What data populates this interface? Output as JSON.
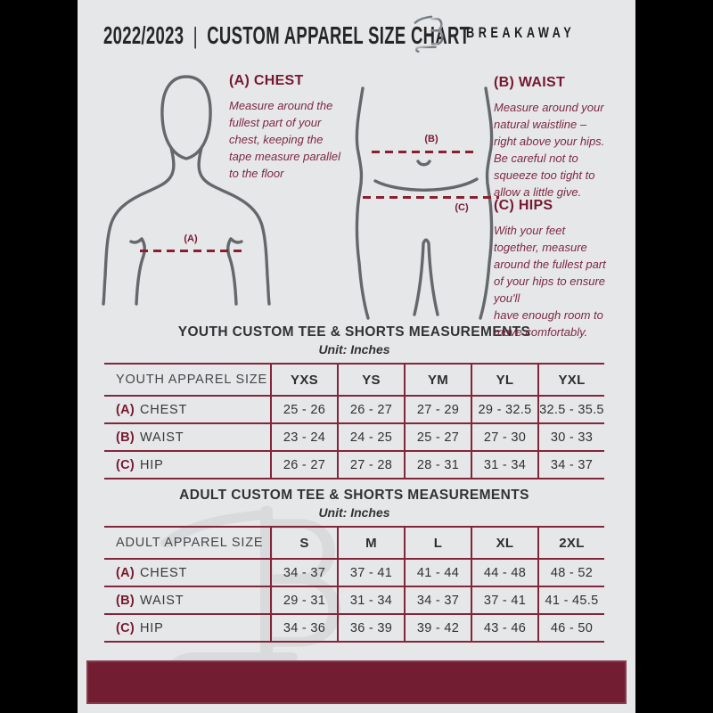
{
  "header": {
    "year": "2022/2023",
    "divider": "|",
    "title": "CUSTOM APPAREL SIZE CHART",
    "brand": "BREAKAWAY"
  },
  "guide": {
    "chest": {
      "heading": "(A) CHEST",
      "marker": "(A)",
      "body": "Measure around the\nfullest part of your\nchest, keeping the\ntape measure parallel\nto the floor"
    },
    "waist": {
      "heading": "(B) WAIST",
      "marker": "(B)",
      "body": "Measure around your\nnatural waistline –\nright above your hips.\nBe careful not to\nsqueeze too tight to\nallow a little give."
    },
    "hips": {
      "heading": "(C) HIPS",
      "marker": "(C)",
      "body": "With your feet\ntogether, measure\naround the fullest part\nof your hips to ensure\nyou'll\nhave enough room to\nmove comfortably."
    }
  },
  "youth_table": {
    "title": "YOUTH CUSTOM TEE & SHORTS MEASUREMENTS",
    "unit": "Unit: Inches",
    "header": [
      "YOUTH APPAREL SIZE",
      "YXS",
      "YS",
      "YM",
      "YL",
      "YXL"
    ],
    "rows": [
      {
        "prefix": "(A)",
        "label": "CHEST",
        "values": [
          "25 - 26",
          "26 - 27",
          "27 - 29",
          "29 - 32.5",
          "32.5 - 35.5"
        ]
      },
      {
        "prefix": "(B)",
        "label": "WAIST",
        "values": [
          "23 - 24",
          "24 - 25",
          "25 - 27",
          "27 - 30",
          "30 - 33"
        ]
      },
      {
        "prefix": "(C)",
        "label": "HIP",
        "values": [
          "26 - 27",
          "27 - 28",
          "28 - 31",
          "31 - 34",
          "34 - 37"
        ]
      }
    ]
  },
  "adult_table": {
    "title": "ADULT CUSTOM TEE & SHORTS MEASUREMENTS",
    "unit": "Unit: Inches",
    "header": [
      "ADULT APPAREL SIZE",
      "S",
      "M",
      "L",
      "XL",
      "2XL"
    ],
    "rows": [
      {
        "prefix": "(A)",
        "label": "CHEST",
        "values": [
          "34 - 37",
          "37 - 41",
          "41 - 44",
          "44 - 48",
          "48 - 52"
        ]
      },
      {
        "prefix": "(B)",
        "label": "WAIST",
        "values": [
          "29 - 31",
          "31 - 34",
          "34 - 37",
          "37 - 41",
          "41 - 45.5"
        ]
      },
      {
        "prefix": "(C)",
        "label": "HIP",
        "values": [
          "34 - 36",
          "36 - 39",
          "39 - 42",
          "43 - 46",
          "46 - 50"
        ]
      }
    ]
  },
  "colors": {
    "maroon_bar": "#731d32",
    "table_border": "#82263b",
    "accent_text": "#7c2940",
    "ink": "#2f3133",
    "page_background": "#e6e7e9",
    "figure_stroke": "#65686b"
  }
}
